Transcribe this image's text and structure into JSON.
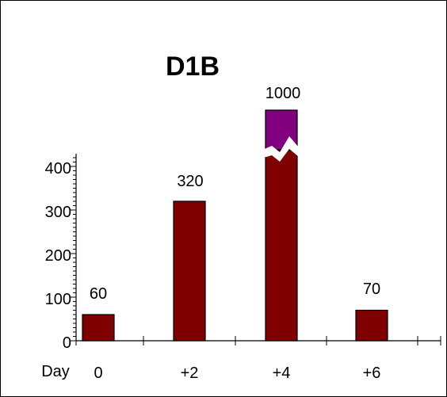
{
  "chart_data": {
    "type": "bar",
    "title": "D1B",
    "categories": [
      "0",
      "+2",
      "+4",
      "+6"
    ],
    "values": [
      60,
      320,
      1000,
      70
    ],
    "data_labels": [
      "60",
      "320",
      "1000",
      "70"
    ],
    "xlabel": "Day",
    "ylabel": "",
    "ylim": [
      0,
      430
    ],
    "yticks": [
      "0",
      "100",
      "200",
      "300",
      "400"
    ],
    "axis_break": {
      "category": "+4",
      "from": 430,
      "to": 1000
    },
    "grid": false,
    "legend": "none",
    "colors": {
      "bar": "#7f0000",
      "broken_bar_top": "#800080",
      "axis": "#000000"
    }
  }
}
